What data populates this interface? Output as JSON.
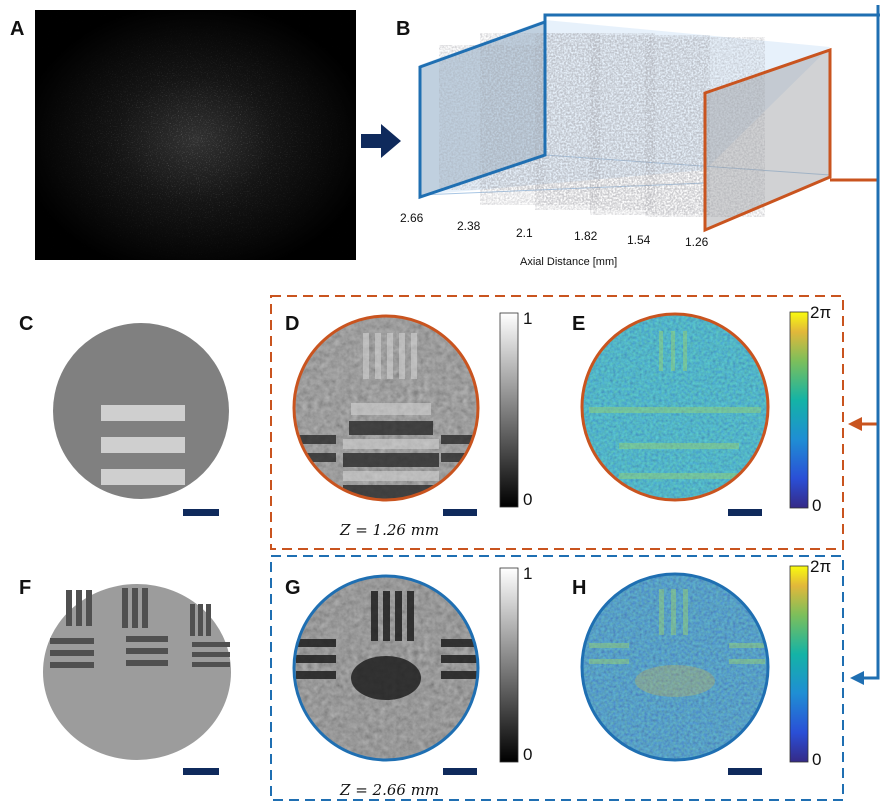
{
  "panels": {
    "A": "A",
    "B": "B",
    "C": "C",
    "D": "D",
    "E": "E",
    "F": "F",
    "G": "G",
    "H": "H"
  },
  "stack": {
    "axis_label": "Axial Distance [mm]",
    "ticks": [
      "2.66",
      "2.38",
      "2.1",
      "1.82",
      "1.54",
      "1.26"
    ]
  },
  "amp_colorbar": {
    "max": "1",
    "min": "0"
  },
  "phase_colorbar": {
    "max": "2π",
    "min": "0"
  },
  "z_top": "Z = 1.26 mm",
  "z_bottom": "Z = 2.66 mm",
  "colors": {
    "orange": "#c9541f",
    "blue": "#1f6fb2",
    "navy": "#0f2a5c"
  }
}
